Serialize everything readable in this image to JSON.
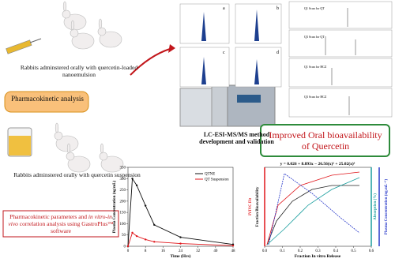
{
  "top_group": {
    "caption": "Rabbits adminstered orally with quercetin-loaded nanoemulsion"
  },
  "pk_box": {
    "label": "Pharmacokinetic analysis"
  },
  "bottom_group": {
    "caption": "Rabbits adminstered orally with quercetin suspension"
  },
  "instrument": {
    "caption": "LC-ESI-MS/MS method development and validation"
  },
  "chromatograms": [
    "a",
    "b",
    "c",
    "d"
  ],
  "spectra": [
    "Q1 Scan for QT",
    "Q3 Scan for QT",
    "Q1 Scan for HCZ",
    "Q3 Scan for HCZ"
  ],
  "result_box": {
    "label": "Improved Oral bioavailability of Quercetin"
  },
  "software_box": {
    "part1": "Pharmacokinetic parameters and ",
    "italic": "in vitro-in vivo",
    "part2": " correlation analysis using GastroPlus™ software"
  },
  "plot1": {
    "ylabel": "Plasma Concentration (ng/mL)",
    "xlabel": "Time (Hrs)",
    "yticks": [
      0,
      50,
      100,
      150,
      200,
      250,
      300,
      350
    ],
    "xticks": [
      0,
      8,
      16,
      24,
      32,
      40,
      48
    ],
    "ylim": [
      0,
      350
    ],
    "xlim": [
      0,
      48
    ],
    "series": [
      {
        "name": "QTNE",
        "color": "#111111",
        "x": [
          0,
          2,
          4,
          8,
          12,
          24,
          48
        ],
        "values": [
          0,
          300,
          270,
          180,
          95,
          40,
          8
        ]
      },
      {
        "name": "QT Suspension",
        "color": "#e0161b",
        "x": [
          0,
          2,
          4,
          8,
          12,
          24,
          48
        ],
        "values": [
          0,
          60,
          45,
          30,
          20,
          12,
          3
        ]
      }
    ]
  },
  "plot2": {
    "equation": "y = 0.026 + 8.893x − 26.56(x)² + 25.02(x)³",
    "xlabel": "Fraction In vitro Release",
    "ylabel_left": "IVIVC Fit",
    "ylabel_left2": "Fraction Bioavailability",
    "ylabel_right": "Absorption (%)",
    "ylabel_right2": "Plasma Concentration (ng.mL⁻¹)",
    "xticks": [
      {
        "value": 0,
        "label": "0.0"
      },
      {
        "value": 0.1,
        "label": "0.1"
      },
      {
        "value": 0.2,
        "label": "0.2"
      },
      {
        "value": 0.3,
        "label": "0.3"
      },
      {
        "value": 0.4,
        "label": "0.4"
      },
      {
        "value": 0.5,
        "label": "0.5"
      },
      {
        "value": 0.6,
        "label": "0.6"
      }
    ],
    "xlim": [
      0,
      0.6
    ]
  }
}
